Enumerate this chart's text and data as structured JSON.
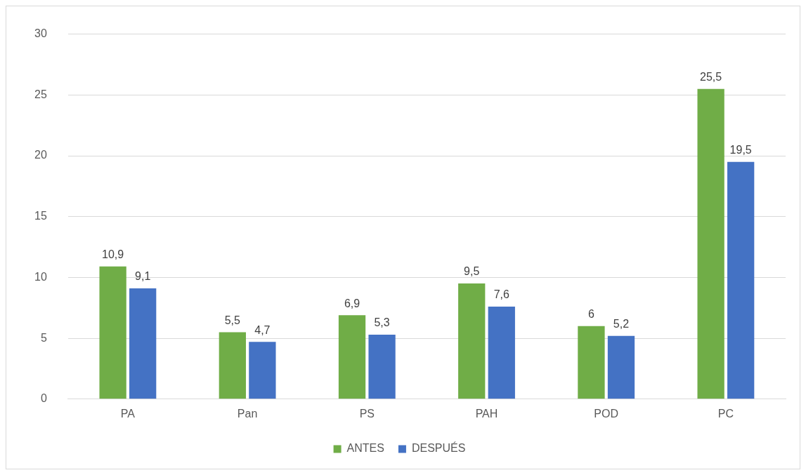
{
  "chart_data": {
    "type": "bar",
    "categories": [
      "PA",
      "Pan",
      "PS",
      "PAH",
      "POD",
      "PC"
    ],
    "series": [
      {
        "name": "ANTES",
        "color": "#70ad47",
        "values": [
          10.9,
          5.5,
          6.9,
          9.5,
          6,
          25.5
        ],
        "value_labels": [
          "10,9",
          "5,5",
          "6,9",
          "9,5",
          "6",
          "25,5"
        ]
      },
      {
        "name": "DESPUÉS",
        "color": "#4472c4",
        "values": [
          9.1,
          4.7,
          5.3,
          7.6,
          5.2,
          19.5
        ],
        "value_labels": [
          "9,1",
          "4,7",
          "5,3",
          "7,6",
          "5,2",
          "19,5"
        ]
      }
    ],
    "ylim": [
      0,
      30
    ],
    "yticks": [
      0,
      5,
      10,
      15,
      20,
      25,
      30
    ],
    "grid": "y",
    "legend": "bottom"
  }
}
